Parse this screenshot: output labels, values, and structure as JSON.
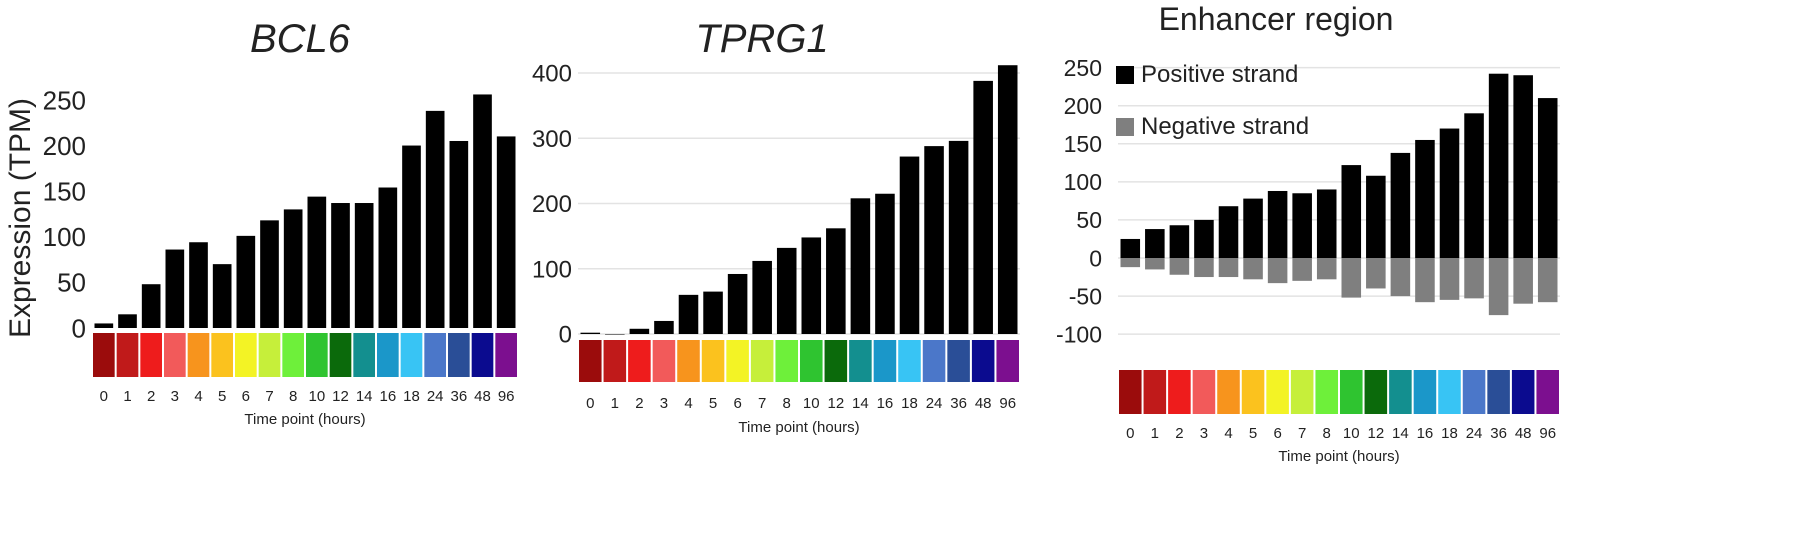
{
  "colors": {
    "bar": "#000000",
    "negative_bar": "#7f7f7f",
    "grid": "#e3e3e3",
    "timepoint_strip": [
      "#9b0c0c",
      "#c01a1a",
      "#ee1c1c",
      "#f25a5a",
      "#f7941d",
      "#fbc21e",
      "#f3f325",
      "#c6ef3a",
      "#6ef03a",
      "#2fc430",
      "#0b6a0b",
      "#138f8f",
      "#1b97c9",
      "#38c4f4",
      "#4b77c9",
      "#2a4e97",
      "#0b0b8f",
      "#7c0f8f"
    ]
  },
  "chart_data": [
    {
      "type": "bar",
      "title": "BCL6",
      "ylabel": "Expression (TPM)",
      "xlabel": "Time point (hours)",
      "ylim": [
        0,
        285
      ],
      "yticks": [
        0,
        50,
        100,
        150,
        200,
        250
      ],
      "grid": false,
      "categories": [
        "0",
        "1",
        "2",
        "3",
        "4",
        "5",
        "6",
        "7",
        "8",
        "10",
        "12",
        "14",
        "16",
        "18",
        "24",
        "36",
        "48",
        "96"
      ],
      "values": [
        5,
        15,
        48,
        86,
        94,
        70,
        101,
        118,
        130,
        144,
        137,
        137,
        154,
        200,
        238,
        205,
        256,
        210
      ]
    },
    {
      "type": "bar",
      "title": "TPRG1",
      "ylabel": "",
      "xlabel": "Time point (hours)",
      "ylim": [
        0,
        420
      ],
      "yticks": [
        0,
        100,
        200,
        300,
        400
      ],
      "grid": true,
      "categories": [
        "0",
        "1",
        "2",
        "3",
        "4",
        "5",
        "6",
        "7",
        "8",
        "10",
        "12",
        "14",
        "16",
        "18",
        "24",
        "36",
        "48",
        "96"
      ],
      "values": [
        2,
        0,
        8,
        20,
        60,
        65,
        92,
        112,
        132,
        148,
        162,
        208,
        215,
        272,
        288,
        296,
        388,
        412
      ]
    },
    {
      "type": "bar",
      "title": "Enhancer region",
      "ylabel": "",
      "xlabel": "Time point (hours)",
      "ylim": [
        -110,
        260
      ],
      "yticks": [
        -100,
        -50,
        0,
        50,
        100,
        150,
        200,
        250
      ],
      "grid": true,
      "legend": "top-left",
      "categories": [
        "0",
        "1",
        "2",
        "3",
        "4",
        "5",
        "6",
        "7",
        "8",
        "10",
        "12",
        "14",
        "16",
        "18",
        "24",
        "36",
        "48",
        "96"
      ],
      "series": [
        {
          "name": "Positive strand",
          "values": [
            25,
            38,
            43,
            50,
            68,
            78,
            88,
            85,
            90,
            122,
            108,
            138,
            155,
            170,
            190,
            242,
            240,
            210
          ]
        },
        {
          "name": "Negative strand",
          "values": [
            -12,
            -15,
            -22,
            -25,
            -25,
            -28,
            -33,
            -30,
            -28,
            -52,
            -40,
            -50,
            -58,
            -55,
            -53,
            -75,
            -60,
            -58
          ]
        }
      ]
    }
  ]
}
